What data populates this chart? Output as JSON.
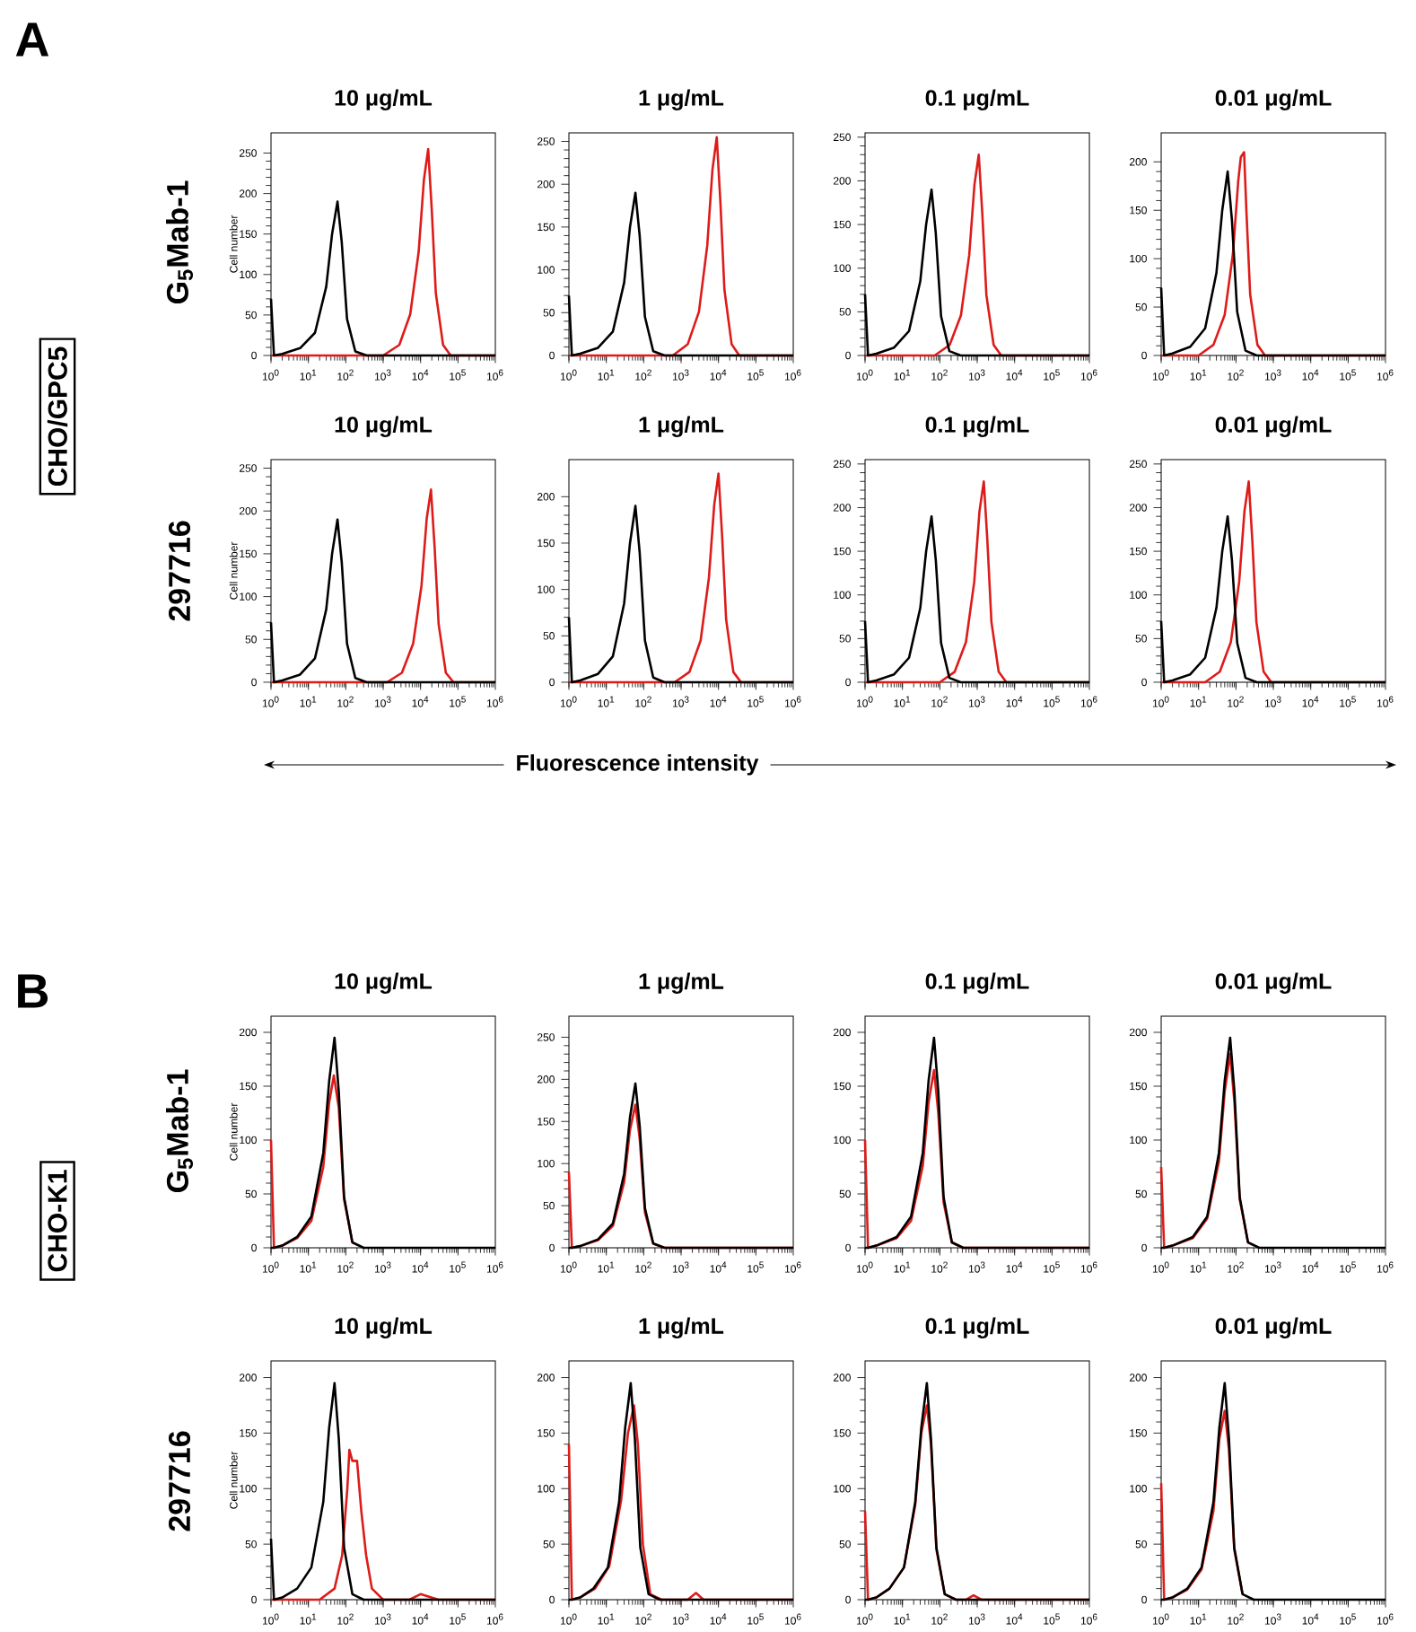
{
  "chart_data": [
    {
      "type": "line",
      "log": "x",
      "title": "10 μg/mL",
      "ylabel": "Cell number",
      "annotations": [
        "A",
        "CHO/GPC5",
        "G$_{5}$Mab-1"
      ],
      "xlim": [
        1,
        1000000
      ],
      "xticks": [
        {
          "value": 1,
          "label": "10$^{0}$"
        },
        {
          "value": 10,
          "label": "10$^{1}$"
        },
        {
          "value": 100,
          "label": "10$^{2}$"
        },
        {
          "value": 1000,
          "label": "10$^{3}$"
        },
        {
          "value": 10000,
          "label": "10$^{4}$"
        },
        {
          "value": 100000,
          "label": "10$^{5}$"
        },
        {
          "value": 1000000,
          "label": "10$^{6}$"
        }
      ],
      "ylim": [
        0,
        275
      ],
      "yticks": [
        0,
        50,
        100,
        150,
        200,
        250
      ],
      "series": [
        {
          "color": "#dd1c1a",
          "x": [
            1,
            1000,
            2700,
            5300,
            8900,
            12300,
            16000,
            20000,
            25600,
            40000,
            64000,
            1000000
          ],
          "values": [
            0,
            0,
            13,
            51,
            128,
            217,
            255,
            179,
            77,
            13,
            0,
            0
          ]
        },
        {
          "color": "#000000",
          "x": [
            1,
            1.2,
            2,
            6,
            15,
            30,
            43,
            60,
            78,
            108,
            180,
            360,
            1000000
          ],
          "values": [
            70,
            0,
            2,
            9,
            28,
            85,
            150,
            190,
            140,
            45,
            5,
            0,
            0
          ]
        }
      ]
    },
    {
      "type": "line",
      "log": "x",
      "title": "1 μg/mL",
      "xlim": [
        1,
        1000000
      ],
      "xticks": [
        {
          "value": 1,
          "label": "10$^{0}$"
        },
        {
          "value": 10,
          "label": "10$^{1}$"
        },
        {
          "value": 100,
          "label": "10$^{2}$"
        },
        {
          "value": 1000,
          "label": "10$^{3}$"
        },
        {
          "value": 10000,
          "label": "10$^{4}$"
        },
        {
          "value": 100000,
          "label": "10$^{5}$"
        },
        {
          "value": 1000000,
          "label": "10$^{6}$"
        }
      ],
      "ylim": [
        0,
        260
      ],
      "yticks": [
        0,
        50,
        100,
        150,
        200,
        250
      ],
      "series": [
        {
          "color": "#dd1c1a",
          "x": [
            1,
            600,
            1500,
            3000,
            5000,
            6900,
            9000,
            11250,
            14400,
            22500,
            36000,
            1000000
          ],
          "values": [
            0,
            0,
            13,
            51,
            128,
            217,
            255,
            179,
            77,
            13,
            0,
            0
          ]
        },
        {
          "color": "#000000",
          "x": [
            1,
            1.2,
            2,
            6,
            15,
            30,
            43,
            60,
            78,
            108,
            180,
            360,
            1000000
          ],
          "values": [
            70,
            0,
            2,
            9,
            28,
            85,
            150,
            190,
            140,
            45,
            5,
            0,
            0
          ]
        }
      ]
    },
    {
      "type": "line",
      "log": "x",
      "title": "0.1 μg/mL",
      "xlim": [
        1,
        1000000
      ],
      "xticks": [
        {
          "value": 1,
          "label": "10$^{0}$"
        },
        {
          "value": 10,
          "label": "10$^{1}$"
        },
        {
          "value": 100,
          "label": "10$^{2}$"
        },
        {
          "value": 1000,
          "label": "10$^{3}$"
        },
        {
          "value": 10000,
          "label": "10$^{4}$"
        },
        {
          "value": 100000,
          "label": "10$^{5}$"
        },
        {
          "value": 1000000,
          "label": "10$^{6}$"
        }
      ],
      "ylim": [
        0,
        255
      ],
      "yticks": [
        0,
        50,
        100,
        150,
        200,
        250
      ],
      "series": [
        {
          "color": "#dd1c1a",
          "x": [
            1,
            73,
            183,
            367,
            611,
            846,
            1100,
            1375,
            1760,
            2750,
            4400,
            1000000
          ],
          "values": [
            0,
            0,
            12,
            46,
            115,
            196,
            230,
            161,
            69,
            12,
            0,
            0
          ]
        },
        {
          "color": "#000000",
          "x": [
            1,
            1.2,
            2,
            6,
            15,
            30,
            43,
            60,
            78,
            108,
            180,
            360,
            1000000
          ],
          "values": [
            70,
            0,
            2,
            9,
            28,
            85,
            150,
            190,
            140,
            45,
            5,
            0,
            0
          ]
        }
      ]
    },
    {
      "type": "line",
      "log": "x",
      "title": "0.01 μg/mL",
      "xlim": [
        1,
        1000000
      ],
      "xticks": [
        {
          "value": 1,
          "label": "10$^{0}$"
        },
        {
          "value": 10,
          "label": "10$^{1}$"
        },
        {
          "value": 100,
          "label": "10$^{2}$"
        },
        {
          "value": 1000,
          "label": "10$^{3}$"
        },
        {
          "value": 10000,
          "label": "10$^{4}$"
        },
        {
          "value": 100000,
          "label": "10$^{5}$"
        },
        {
          "value": 1000000,
          "label": "10$^{6}$"
        }
      ],
      "ylim": [
        0,
        230
      ],
      "yticks": [
        0,
        50,
        100,
        150,
        200
      ],
      "series": [
        {
          "color": "#dd1c1a",
          "x": [
            1,
            10,
            25,
            50,
            83,
            115,
            135,
            165,
            190,
            240,
            375,
            600,
            1000000
          ],
          "values": [
            0,
            0,
            11,
            42,
            105,
            180,
            205,
            210,
            150,
            63,
            11,
            0,
            0
          ]
        },
        {
          "color": "#000000",
          "x": [
            1,
            1.2,
            2,
            6,
            15,
            30,
            43,
            60,
            78,
            108,
            180,
            360,
            1000000
          ],
          "values": [
            70,
            0,
            2,
            9,
            28,
            85,
            150,
            190,
            140,
            45,
            5,
            0,
            0
          ]
        }
      ]
    },
    {
      "type": "line",
      "log": "x",
      "title": "10 μg/mL",
      "ylabel": "Cell number",
      "annotations": [
        "297716",
        "Fluorescence intensity"
      ],
      "xlim": [
        1,
        1000000
      ],
      "xticks": [
        {
          "value": 1,
          "label": "10$^{0}$"
        },
        {
          "value": 10,
          "label": "10$^{1}$"
        },
        {
          "value": 100,
          "label": "10$^{2}$"
        },
        {
          "value": 1000,
          "label": "10$^{3}$"
        },
        {
          "value": 10000,
          "label": "10$^{4}$"
        },
        {
          "value": 100000,
          "label": "10$^{5}$"
        },
        {
          "value": 1000000,
          "label": "10$^{6}$"
        }
      ],
      "ylim": [
        0,
        260
      ],
      "yticks": [
        0,
        50,
        100,
        150,
        200,
        250
      ],
      "series": [
        {
          "color": "#dd1c1a",
          "x": [
            1,
            1270,
            3170,
            6330,
            10600,
            14600,
            19000,
            23750,
            30400,
            47500,
            76000,
            1000000
          ],
          "values": [
            0,
            0,
            11,
            45,
            113,
            191,
            225,
            158,
            68,
            11,
            0,
            0
          ]
        },
        {
          "color": "#000000",
          "x": [
            1,
            1.2,
            2,
            6,
            15,
            30,
            43,
            60,
            78,
            108,
            180,
            360,
            1000000
          ],
          "values": [
            70,
            0,
            2,
            9,
            28,
            85,
            150,
            190,
            140,
            45,
            5,
            0,
            0
          ]
        }
      ]
    },
    {
      "type": "line",
      "log": "x",
      "title": "1 μg/mL",
      "xlim": [
        1,
        1000000
      ],
      "xticks": [
        {
          "value": 1,
          "label": "10$^{0}$"
        },
        {
          "value": 10,
          "label": "10$^{1}$"
        },
        {
          "value": 100,
          "label": "10$^{2}$"
        },
        {
          "value": 1000,
          "label": "10$^{3}$"
        },
        {
          "value": 10000,
          "label": "10$^{4}$"
        },
        {
          "value": 100000,
          "label": "10$^{5}$"
        },
        {
          "value": 1000000,
          "label": "10$^{6}$"
        }
      ],
      "ylim": [
        0,
        240
      ],
      "yticks": [
        0,
        50,
        100,
        150,
        200
      ],
      "series": [
        {
          "color": "#dd1c1a",
          "x": [
            1,
            670,
            1670,
            3330,
            5560,
            7690,
            10000,
            12500,
            16000,
            25000,
            40000,
            1000000
          ],
          "values": [
            0,
            0,
            11,
            45,
            113,
            191,
            225,
            158,
            68,
            11,
            0,
            0
          ]
        },
        {
          "color": "#000000",
          "x": [
            1,
            1.2,
            2,
            6,
            15,
            30,
            43,
            60,
            78,
            108,
            180,
            360,
            1000000
          ],
          "values": [
            70,
            0,
            2,
            9,
            28,
            85,
            150,
            190,
            140,
            45,
            5,
            0,
            0
          ]
        }
      ]
    },
    {
      "type": "line",
      "log": "x",
      "title": "0.1 μg/mL",
      "xlim": [
        1,
        1000000
      ],
      "xticks": [
        {
          "value": 1,
          "label": "10$^{0}$"
        },
        {
          "value": 10,
          "label": "10$^{1}$"
        },
        {
          "value": 100,
          "label": "10$^{2}$"
        },
        {
          "value": 1000,
          "label": "10$^{3}$"
        },
        {
          "value": 10000,
          "label": "10$^{4}$"
        },
        {
          "value": 100000,
          "label": "10$^{5}$"
        },
        {
          "value": 1000000,
          "label": "10$^{6}$"
        }
      ],
      "ylim": [
        0,
        255
      ],
      "yticks": [
        0,
        50,
        100,
        150,
        200,
        250
      ],
      "series": [
        {
          "color": "#dd1c1a",
          "x": [
            1,
            100,
            250,
            500,
            833,
            1150,
            1500,
            1875,
            2400,
            3750,
            6000,
            1000000
          ],
          "values": [
            0,
            0,
            12,
            46,
            115,
            196,
            230,
            161,
            69,
            12,
            0,
            0
          ]
        },
        {
          "color": "#000000",
          "x": [
            1,
            1.2,
            2,
            6,
            15,
            30,
            43,
            60,
            78,
            108,
            180,
            360,
            1000000
          ],
          "values": [
            70,
            0,
            2,
            9,
            28,
            85,
            150,
            190,
            140,
            45,
            5,
            0,
            0
          ]
        }
      ]
    },
    {
      "type": "line",
      "log": "x",
      "title": "0.01 μg/mL",
      "xlim": [
        1,
        1000000
      ],
      "xticks": [
        {
          "value": 1,
          "label": "10$^{0}$"
        },
        {
          "value": 10,
          "label": "10$^{1}$"
        },
        {
          "value": 100,
          "label": "10$^{2}$"
        },
        {
          "value": 1000,
          "label": "10$^{3}$"
        },
        {
          "value": 10000,
          "label": "10$^{4}$"
        },
        {
          "value": 100000,
          "label": "10$^{5}$"
        },
        {
          "value": 1000000,
          "label": "10$^{6}$"
        }
      ],
      "ylim": [
        0,
        255
      ],
      "yticks": [
        0,
        50,
        100,
        150,
        200,
        250
      ],
      "series": [
        {
          "color": "#dd1c1a",
          "x": [
            1,
            15,
            37,
            73,
            122,
            169,
            220,
            275,
            352,
            550,
            880,
            1000000
          ],
          "values": [
            0,
            0,
            12,
            46,
            115,
            196,
            230,
            161,
            69,
            12,
            0,
            0
          ]
        },
        {
          "color": "#000000",
          "x": [
            1,
            1.2,
            2,
            6,
            15,
            30,
            43,
            60,
            78,
            108,
            180,
            360,
            1000000
          ],
          "values": [
            70,
            0,
            2,
            9,
            28,
            85,
            150,
            190,
            140,
            45,
            5,
            0,
            0
          ]
        }
      ]
    },
    {
      "type": "line",
      "log": "x",
      "title": "10 μg/mL",
      "ylabel": "Cell number",
      "annotations": [
        "B",
        "CHO-K1",
        "G$_{5}$Mab-1"
      ],
      "xlim": [
        1,
        1000000
      ],
      "xticks": [
        {
          "value": 1,
          "label": "10$^{0}$"
        },
        {
          "value": 10,
          "label": "10$^{1}$"
        },
        {
          "value": 100,
          "label": "10$^{2}$"
        },
        {
          "value": 1000,
          "label": "10$^{3}$"
        },
        {
          "value": 10000,
          "label": "10$^{4}$"
        },
        {
          "value": 100000,
          "label": "10$^{5}$"
        },
        {
          "value": 1000000,
          "label": "10$^{6}$"
        }
      ],
      "ylim": [
        0,
        215
      ],
      "yticks": [
        0,
        50,
        100,
        150,
        200
      ],
      "series": [
        {
          "color": "#dd1c1a",
          "x": [
            1,
            1.2,
            2,
            5,
            12,
            25,
            36,
            48,
            65,
            90,
            150
          ],
          "values": [
            100,
            0,
            2,
            9,
            25,
            75,
            135,
            160,
            130,
            45,
            5
          ]
        },
        {
          "color": "#000000",
          "x": [
            1,
            1.2,
            2,
            5,
            12,
            25,
            36,
            50,
            65,
            90,
            150,
            300,
            1000000
          ],
          "values": [
            0,
            0,
            2,
            10,
            29,
            88,
            155,
            195,
            145,
            47,
            5,
            0,
            0
          ]
        }
      ]
    },
    {
      "type": "line",
      "log": "x",
      "title": "1 μg/mL",
      "xlim": [
        1,
        1000000
      ],
      "xticks": [
        {
          "value": 1,
          "label": "10$^{0}$"
        },
        {
          "value": 10,
          "label": "10$^{1}$"
        },
        {
          "value": 100,
          "label": "10$^{2}$"
        },
        {
          "value": 1000,
          "label": "10$^{3}$"
        },
        {
          "value": 10000,
          "label": "10$^{4}$"
        },
        {
          "value": 100000,
          "label": "10$^{5}$"
        },
        {
          "value": 1000000,
          "label": "10$^{6}$"
        }
      ],
      "ylim": [
        0,
        275
      ],
      "yticks": [
        0,
        50,
        100,
        150,
        200,
        250
      ],
      "series": [
        {
          "color": "#dd1c1a",
          "x": [
            1,
            1.2,
            2,
            6,
            15,
            30,
            43,
            60,
            78,
            108,
            180,
            360,
            1000000
          ],
          "values": [
            90,
            0,
            2,
            9,
            26,
            78,
            140,
            170,
            130,
            42,
            5,
            0,
            0
          ]
        },
        {
          "color": "#000000",
          "x": [
            1,
            1.2,
            2,
            6,
            15,
            30,
            43,
            60,
            78,
            108,
            180,
            360,
            1000000
          ],
          "values": [
            0,
            0,
            2,
            10,
            29,
            88,
            155,
            195,
            145,
            47,
            5,
            0,
            0
          ]
        }
      ]
    },
    {
      "type": "line",
      "log": "x",
      "title": "0.1 μg/mL",
      "xlim": [
        1,
        1000000
      ],
      "xticks": [
        {
          "value": 1,
          "label": "10$^{0}$"
        },
        {
          "value": 10,
          "label": "10$^{1}$"
        },
        {
          "value": 100,
          "label": "10$^{2}$"
        },
        {
          "value": 1000,
          "label": "10$^{3}$"
        },
        {
          "value": 10000,
          "label": "10$^{4}$"
        },
        {
          "value": 100000,
          "label": "10$^{5}$"
        },
        {
          "value": 1000000,
          "label": "10$^{6}$"
        }
      ],
      "ylim": [
        0,
        215
      ],
      "yticks": [
        0,
        50,
        100,
        150,
        200
      ],
      "series": [
        {
          "color": "#dd1c1a",
          "x": [
            1,
            1.2,
            2,
            7,
            17,
            35,
            50,
            70,
            91,
            126,
            210,
            420,
            1000000
          ],
          "values": [
            100,
            0,
            2,
            9,
            25,
            76,
            135,
            165,
            125,
            42,
            5,
            0,
            0
          ]
        },
        {
          "color": "#000000",
          "x": [
            1,
            1.2,
            2,
            7,
            17,
            35,
            50,
            70,
            91,
            126,
            210,
            420,
            1000000
          ],
          "values": [
            0,
            0,
            2,
            10,
            29,
            88,
            155,
            195,
            145,
            47,
            5,
            0,
            0
          ]
        }
      ]
    },
    {
      "type": "line",
      "log": "x",
      "title": "0.01 μg/mL",
      "xlim": [
        1,
        1000000
      ],
      "xticks": [
        {
          "value": 1,
          "label": "10$^{0}$"
        },
        {
          "value": 10,
          "label": "10$^{1}$"
        },
        {
          "value": 100,
          "label": "10$^{2}$"
        },
        {
          "value": 1000,
          "label": "10$^{3}$"
        },
        {
          "value": 10000,
          "label": "10$^{4}$"
        },
        {
          "value": 100000,
          "label": "10$^{5}$"
        },
        {
          "value": 1000000,
          "label": "10$^{6}$"
        }
      ],
      "ylim": [
        0,
        215
      ],
      "yticks": [
        0,
        50,
        100,
        150,
        200
      ],
      "series": [
        {
          "color": "#dd1c1a",
          "x": [
            1,
            1.2,
            2,
            7,
            17,
            35,
            50,
            70,
            91,
            126,
            210
          ],
          "values": [
            75,
            0,
            2,
            9,
            27,
            80,
            145,
            180,
            135,
            45,
            5
          ]
        },
        {
          "color": "#000000",
          "x": [
            1,
            1.2,
            2,
            7,
            17,
            35,
            50,
            70,
            91,
            126,
            210,
            420,
            1000000
          ],
          "values": [
            0,
            0,
            2,
            10,
            29,
            88,
            155,
            195,
            145,
            47,
            5,
            0,
            0
          ]
        }
      ]
    },
    {
      "type": "line",
      "log": "x",
      "title": "10 μg/mL",
      "ylabel": "Cell number",
      "annotations": [
        "297716"
      ],
      "xlim": [
        1,
        1000000
      ],
      "xticks": [
        {
          "value": 1,
          "label": "10$^{0}$"
        },
        {
          "value": 10,
          "label": "10$^{1}$"
        },
        {
          "value": 100,
          "label": "10$^{2}$"
        },
        {
          "value": 1000,
          "label": "10$^{3}$"
        },
        {
          "value": 10000,
          "label": "10$^{4}$"
        },
        {
          "value": 100000,
          "label": "10$^{5}$"
        },
        {
          "value": 1000000,
          "label": "10$^{6}$"
        }
      ],
      "ylim": [
        0,
        215
      ],
      "yticks": [
        0,
        50,
        100,
        150,
        200
      ],
      "series": [
        {
          "color": "#dd1c1a",
          "x": [
            1,
            20,
            50,
            80,
            110,
            125,
            150,
            200,
            260,
            350,
            500,
            1000,
            5000,
            10000,
            30000,
            1000000
          ],
          "values": [
            0,
            0,
            10,
            40,
            100,
            135,
            125,
            125,
            80,
            40,
            10,
            0,
            0,
            5,
            0,
            0
          ]
        },
        {
          "color": "#000000",
          "x": [
            1,
            1.2,
            2,
            5,
            12,
            25,
            36,
            50,
            65,
            90,
            150,
            300,
            1000000
          ],
          "values": [
            55,
            0,
            2,
            10,
            29,
            88,
            155,
            195,
            145,
            47,
            5,
            0,
            0
          ]
        }
      ]
    },
    {
      "type": "line",
      "log": "x",
      "title": "1 μg/mL",
      "xlim": [
        1,
        1000000
      ],
      "xticks": [
        {
          "value": 1,
          "label": "10$^{0}$"
        },
        {
          "value": 10,
          "label": "10$^{1}$"
        },
        {
          "value": 100,
          "label": "10$^{2}$"
        },
        {
          "value": 1000,
          "label": "10$^{3}$"
        },
        {
          "value": 10000,
          "label": "10$^{4}$"
        },
        {
          "value": 100000,
          "label": "10$^{5}$"
        },
        {
          "value": 1000000,
          "label": "10$^{6}$"
        }
      ],
      "ylim": [
        0,
        215
      ],
      "yticks": [
        0,
        50,
        100,
        150,
        200
      ],
      "series": [
        {
          "color": "#dd1c1a",
          "x": [
            1,
            1.2,
            2,
            5,
            12,
            25,
            38,
            55,
            70,
            95,
            150,
            300,
            1500,
            2500,
            4000,
            1000000
          ],
          "values": [
            140,
            0,
            2,
            10,
            30,
            90,
            150,
            175,
            140,
            50,
            5,
            0,
            0,
            6,
            0,
            0
          ]
        },
        {
          "color": "#000000",
          "x": [
            1,
            1.2,
            2,
            4.5,
            11,
            22,
            32,
            45,
            58,
            81,
            135,
            270,
            1000000
          ],
          "values": [
            0,
            0,
            2,
            10,
            29,
            88,
            155,
            195,
            145,
            47,
            5,
            0,
            0
          ]
        }
      ]
    },
    {
      "type": "line",
      "log": "x",
      "title": "0.1 μg/mL",
      "xlim": [
        1,
        1000000
      ],
      "xticks": [
        {
          "value": 1,
          "label": "10$^{0}$"
        },
        {
          "value": 10,
          "label": "10$^{1}$"
        },
        {
          "value": 100,
          "label": "10$^{2}$"
        },
        {
          "value": 1000,
          "label": "10$^{3}$"
        },
        {
          "value": 10000,
          "label": "10$^{4}$"
        },
        {
          "value": 100000,
          "label": "10$^{5}$"
        },
        {
          "value": 1000000,
          "label": "10$^{6}$"
        }
      ],
      "ylim": [
        0,
        215
      ],
      "yticks": [
        0,
        50,
        100,
        150,
        200
      ],
      "series": [
        {
          "color": "#dd1c1a",
          "x": [
            1,
            1.2,
            2,
            4.5,
            11,
            22,
            32,
            45,
            58,
            81,
            135,
            270,
            500,
            800,
            1300,
            1000000
          ],
          "values": [
            80,
            0,
            2,
            10,
            29,
            85,
            150,
            175,
            140,
            45,
            5,
            0,
            0,
            4,
            0,
            0
          ]
        },
        {
          "color": "#000000",
          "x": [
            1,
            1.2,
            2,
            4.5,
            11,
            22,
            32,
            45,
            58,
            81,
            135,
            270,
            1000000
          ],
          "values": [
            0,
            0,
            2,
            10,
            29,
            88,
            155,
            195,
            145,
            47,
            5,
            0,
            0
          ]
        }
      ]
    },
    {
      "type": "line",
      "log": "x",
      "title": "0.01 μg/mL",
      "xlim": [
        1,
        1000000
      ],
      "xticks": [
        {
          "value": 1,
          "label": "10$^{0}$"
        },
        {
          "value": 10,
          "label": "10$^{1}$"
        },
        {
          "value": 100,
          "label": "10$^{2}$"
        },
        {
          "value": 1000,
          "label": "10$^{3}$"
        },
        {
          "value": 10000,
          "label": "10$^{4}$"
        },
        {
          "value": 100000,
          "label": "10$^{5}$"
        },
        {
          "value": 1000000,
          "label": "10$^{6}$"
        }
      ],
      "ylim": [
        0,
        215
      ],
      "yticks": [
        0,
        50,
        100,
        150,
        200
      ],
      "series": [
        {
          "color": "#dd1c1a",
          "x": [
            1,
            1.2,
            2,
            5,
            12,
            25,
            36,
            50,
            65,
            90,
            150
          ],
          "values": [
            105,
            0,
            2,
            9,
            27,
            80,
            145,
            170,
            135,
            45,
            5
          ]
        },
        {
          "color": "#000000",
          "x": [
            1,
            1.2,
            2,
            5,
            12,
            25,
            36,
            50,
            65,
            90,
            150,
            300,
            1000000
          ],
          "values": [
            0,
            0,
            2,
            10,
            29,
            88,
            155,
            195,
            145,
            47,
            5,
            0,
            0
          ]
        }
      ]
    }
  ]
}
